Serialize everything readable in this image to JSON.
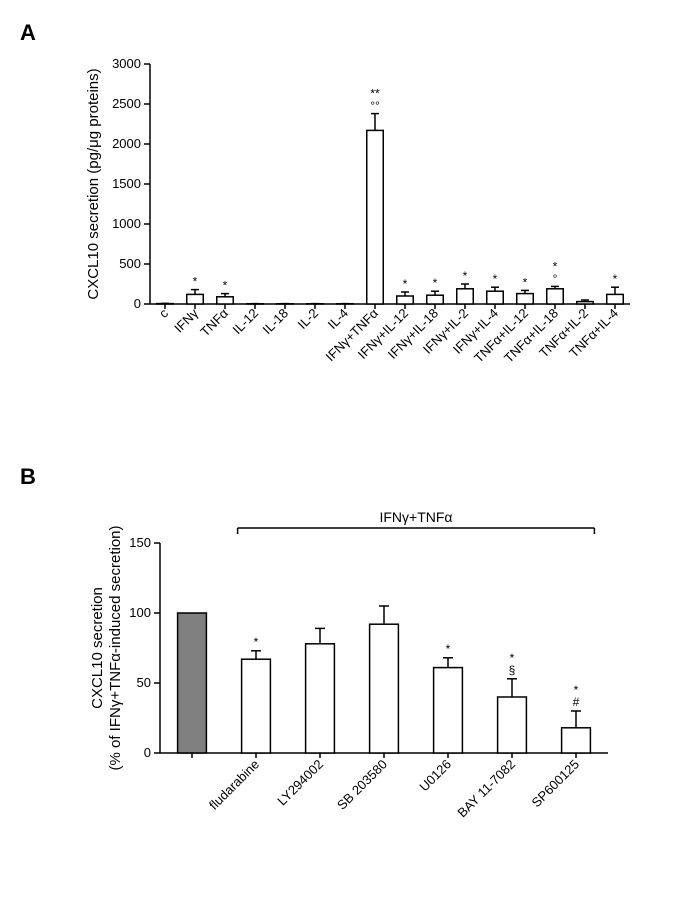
{
  "panelA": {
    "label": "A",
    "type": "bar",
    "ylabel": "CXCL10 secretion (pg/μg proteins)",
    "ylim": [
      0,
      3000
    ],
    "ytick_step": 500,
    "background_color": "#ffffff",
    "bar_color": "#ffffff",
    "bar_stroke": "#000000",
    "bar_width": 0.55,
    "categories": [
      "c",
      "IFNγ",
      "TNFα",
      "IL-12",
      "IL-18",
      "IL-2",
      "IL-4",
      "IFNγ+TNFα",
      "IFNγ+IL-12",
      "IFNγ+IL-18",
      "IFNγ+IL-2",
      "IFNγ+IL-4",
      "TNFα+IL-12",
      "TNFα+IL-18",
      "TNFα+IL-2",
      "TNFα+IL-4"
    ],
    "values": [
      5,
      120,
      90,
      3,
      3,
      3,
      3,
      2170,
      100,
      110,
      190,
      160,
      130,
      190,
      30,
      120
    ],
    "errors": [
      3,
      60,
      40,
      2,
      2,
      2,
      2,
      210,
      50,
      50,
      60,
      50,
      40,
      30,
      20,
      90
    ],
    "sig": [
      "",
      "*",
      "*",
      "",
      "",
      "",
      "",
      "**|°°",
      "*",
      "*",
      "*",
      "*",
      "*",
      "*|°",
      "",
      "*"
    ]
  },
  "panelB": {
    "label": "B",
    "type": "bar",
    "ylabel_line1": "CXCL10 secretion",
    "ylabel_line2": "(% of IFNγ+TNFα-induced secretion)",
    "ylim": [
      0,
      150
    ],
    "ytick_step": 50,
    "background_color": "#ffffff",
    "bracket_label": "IFNγ+TNFα",
    "categories": [
      "",
      "fludarabine",
      "LY294002",
      "SB 203580",
      "U0126",
      "BAY 11-7082",
      "SP600125"
    ],
    "values": [
      100,
      67,
      78,
      92,
      61,
      40,
      18
    ],
    "errors": [
      0,
      6,
      11,
      13,
      7,
      13,
      12
    ],
    "fills": [
      "#808080",
      "#ffffff",
      "#ffffff",
      "#ffffff",
      "#ffffff",
      "#ffffff",
      "#ffffff"
    ],
    "sig": [
      "",
      "*",
      "",
      "",
      "*",
      "*|§",
      "*|#"
    ],
    "bar_width": 0.45
  }
}
